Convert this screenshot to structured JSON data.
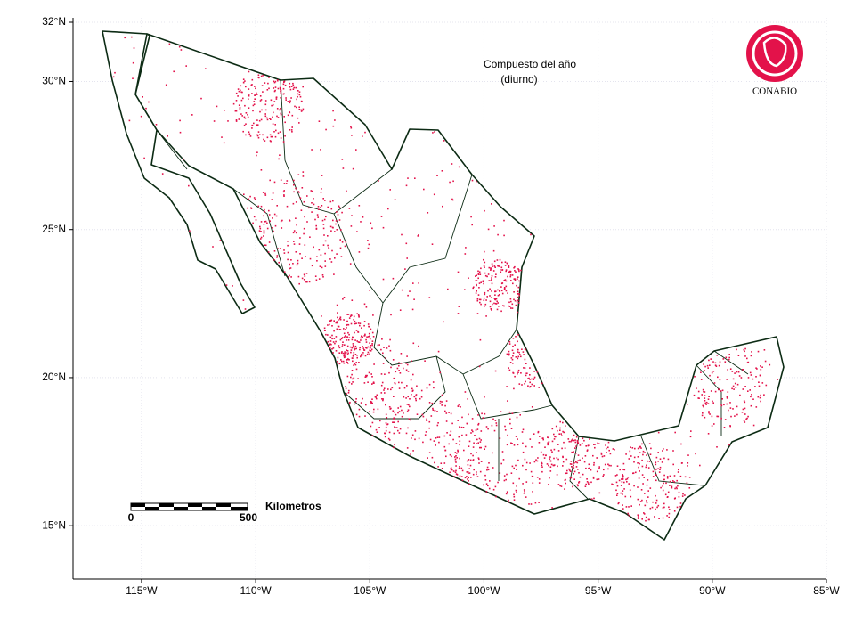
{
  "map": {
    "title": "Compuesto del año",
    "subtitle": "(diurno)",
    "logo": "CONABIO",
    "scale_bar": {
      "label": "Kilometros",
      "start": "0",
      "end": "500"
    },
    "xlim": [
      -118,
      -85
    ],
    "xticks": [
      {
        "value": -115,
        "label": "115°W"
      },
      {
        "value": -110,
        "label": "110°W"
      },
      {
        "value": -105,
        "label": "105°W"
      },
      {
        "value": -100,
        "label": "100°W"
      },
      {
        "value": -95,
        "label": "95°W"
      },
      {
        "value": -90,
        "label": "90°W"
      },
      {
        "value": -85,
        "label": "85°W"
      }
    ],
    "ylim": [
      13.2,
      32.15
    ],
    "yticks": [
      {
        "value": 15,
        "label": "15°N"
      },
      {
        "value": 20,
        "label": "20°N"
      },
      {
        "value": 25,
        "label": "25°N"
      },
      {
        "value": 30,
        "label": "30°N"
      },
      {
        "value": 32,
        "label": "32°N"
      }
    ]
  }
}
